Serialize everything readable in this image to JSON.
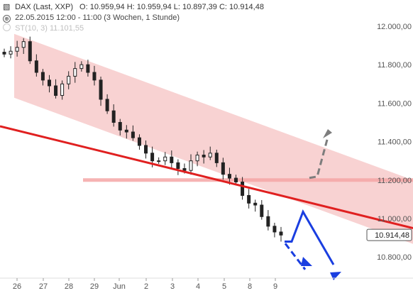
{
  "header": {
    "title": "DAX (Last, XXP)",
    "ohlc": "O: 10.959,94  H: 10.959,94  L: 10.897,39  C: 10.914,48",
    "period": "22.05.2015 12:00 - 11:00 (3 Wochen, 1 Stunde)",
    "indicator": "ST(10, 3) 11.101,55",
    "icons": [
      "candlestick-icon",
      "clock-icon"
    ]
  },
  "chart_data": {
    "type": "candlestick",
    "y_ticks": [
      10800,
      11000,
      11200,
      11400,
      11600,
      11800,
      12000
    ],
    "y_tick_labels": [
      "10.800,00",
      "11.000,00",
      "11.200,00",
      "11.400,00",
      "11.600,00",
      "11.800,00",
      "12.000,00"
    ],
    "ylim": [
      10690,
      12070
    ],
    "x_tick_labels": [
      "26",
      "27",
      "28",
      "29",
      "Jun",
      "2",
      "3",
      "4",
      "5",
      "8",
      "9"
    ],
    "last_price_label": "10.914,48",
    "last_price": 10914.48,
    "closes": [
      11855,
      11870,
      11890,
      11920,
      11820,
      11760,
      11720,
      11690,
      11640,
      11700,
      11740,
      11780,
      11800,
      11760,
      11720,
      11620,
      11560,
      11500,
      11460,
      11450,
      11420,
      11380,
      11340,
      11300,
      11300,
      11320,
      11290,
      11260,
      11250,
      11300,
      11330,
      11320,
      11340,
      11290,
      11230,
      11210,
      11190,
      11120,
      11080,
      11070,
      11010,
      10960,
      10930,
      10914
    ],
    "colors": {
      "up": "#222222",
      "down": "#222222",
      "channel": "#f4b4b4",
      "trend": "#e02020",
      "hline": "#f4a6a6",
      "proj_blue": "#1a3ee0",
      "proj_grey": "#7d7d7d",
      "axis_text": "#555555"
    }
  }
}
